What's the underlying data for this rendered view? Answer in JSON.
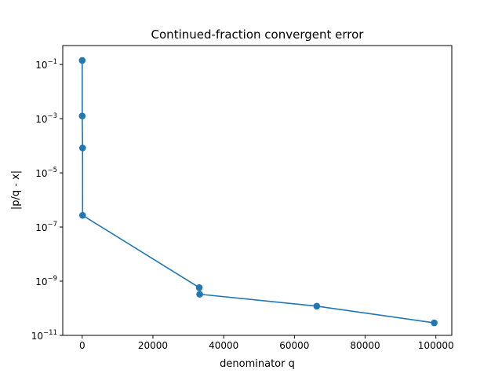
{
  "colors": {
    "background": "#ffffff",
    "axes": "#000000",
    "series": "#1f77b4"
  },
  "chart_data": {
    "type": "line",
    "title": "Continued-fraction convergent error",
    "xlabel": "denominator q",
    "ylabel": "|p/q - x|",
    "xlim": [
      -5500,
      104500
    ],
    "ylim": [
      1e-11,
      0.5
    ],
    "yscale": "log",
    "grid": false,
    "legend": "none",
    "markers": true,
    "x_ticks": [
      0,
      20000,
      40000,
      60000,
      80000,
      100000
    ],
    "x_tick_labels": [
      "0",
      "20000",
      "40000",
      "60000",
      "80000",
      "100000"
    ],
    "y_ticks": [
      1e-11,
      1e-09,
      1e-07,
      1e-05,
      0.001,
      0.1
    ],
    "y_tick_labels": [
      {
        "base": "10",
        "exp": "−11"
      },
      {
        "base": "10",
        "exp": "−9"
      },
      {
        "base": "10",
        "exp": "−7"
      },
      {
        "base": "10",
        "exp": "−5"
      },
      {
        "base": "10",
        "exp": "−3"
      },
      {
        "base": "10",
        "exp": "−1"
      }
    ],
    "series": [
      {
        "x": [
          1,
          7,
          106,
          113,
          33102,
          33215,
          66317,
          99532
        ],
        "y": [
          0.1416,
          0.00126,
          8.3e-05,
          2.7e-07,
          5.8e-10,
          3.3e-10,
          1.2e-10,
          2.9e-11
        ]
      }
    ]
  }
}
